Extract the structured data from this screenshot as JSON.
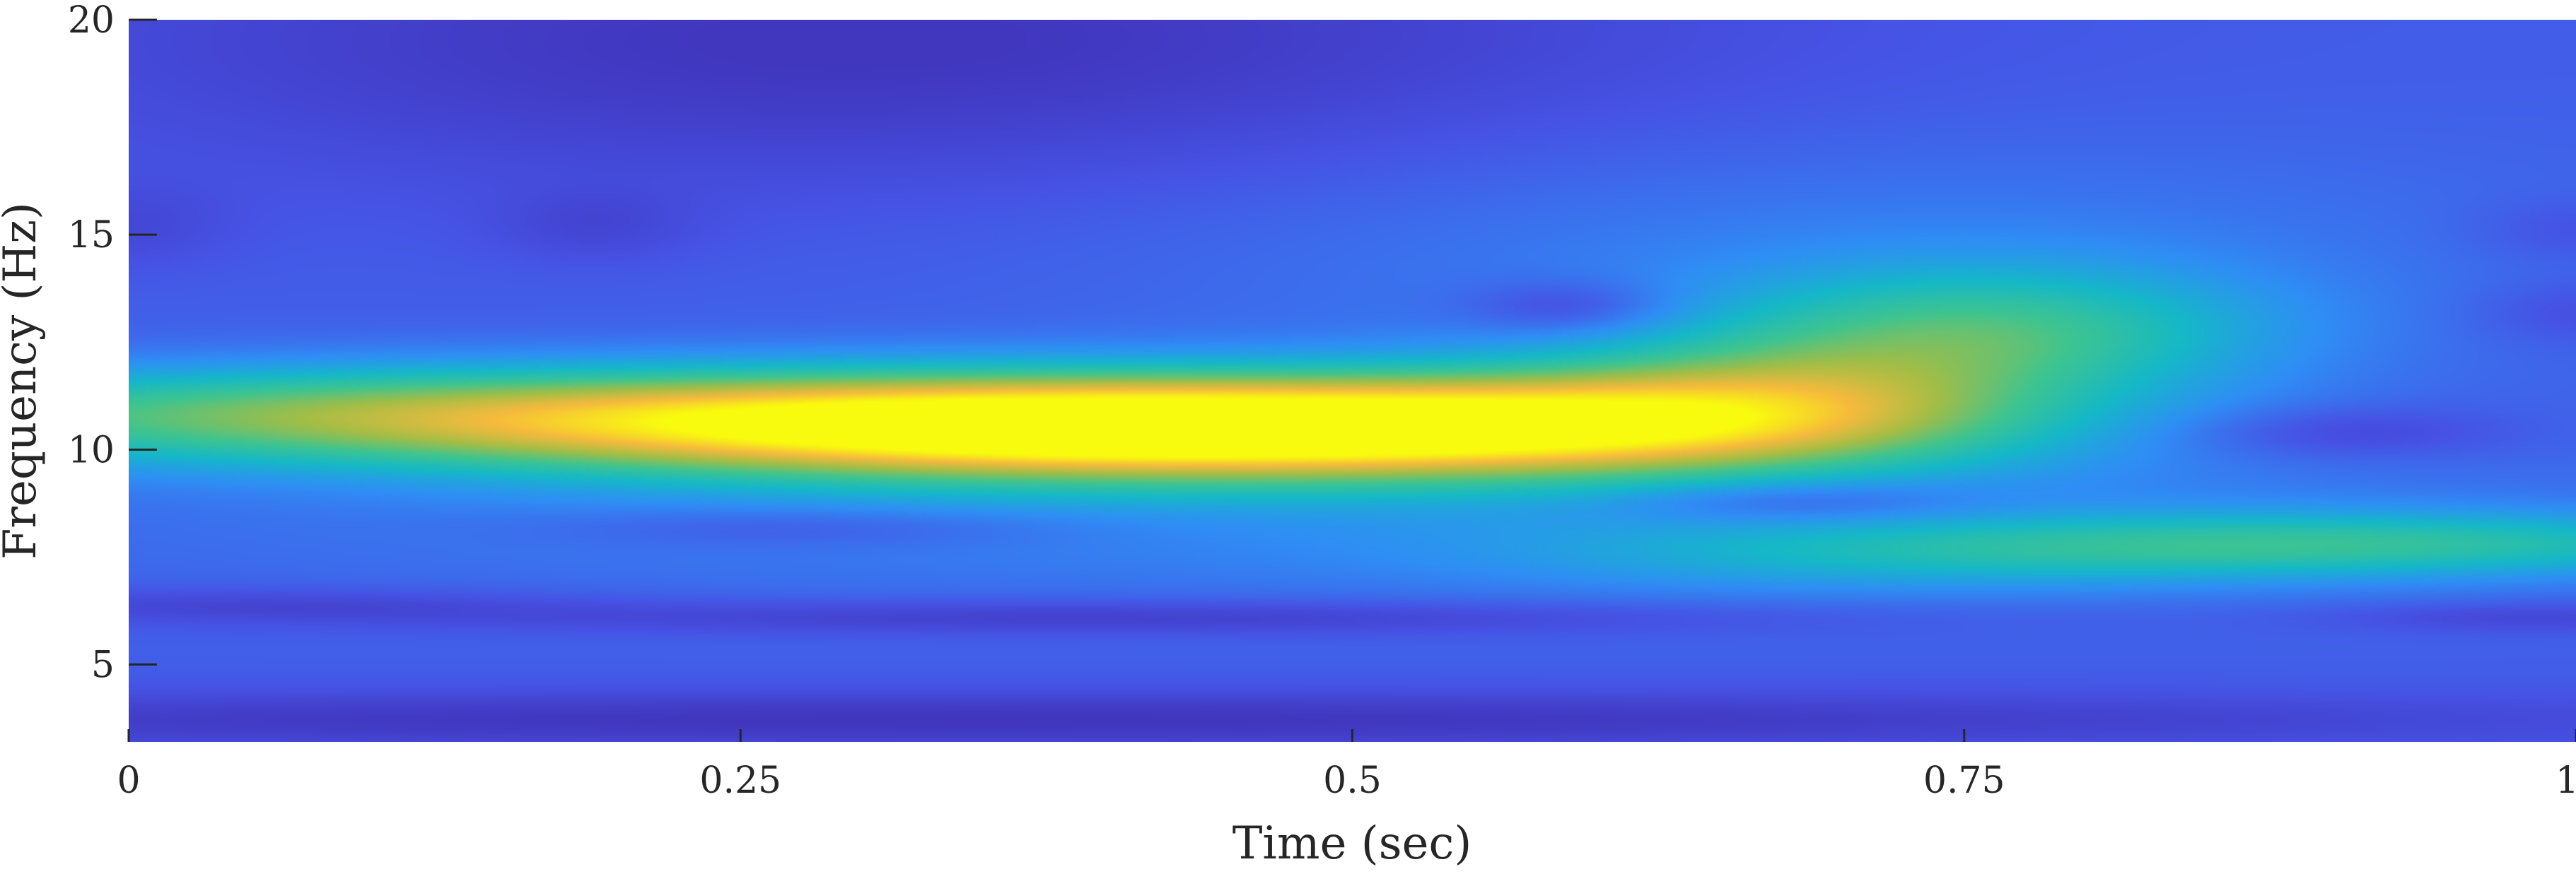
{
  "chart_data": {
    "type": "heatmap",
    "title": "",
    "xlabel": "Time (sec)",
    "ylabel": "Frequency (Hz)",
    "xlim": [
      0,
      1
    ],
    "ylim": [
      3.2,
      20
    ],
    "x_ticks": [
      {
        "value": 0,
        "label": "0"
      },
      {
        "value": 0.25,
        "label": "0.25"
      },
      {
        "value": 0.5,
        "label": "0.5"
      },
      {
        "value": 0.75,
        "label": "0.75"
      },
      {
        "value": 1,
        "label": "1"
      }
    ],
    "y_ticks": [
      {
        "value": 5,
        "label": "5"
      },
      {
        "value": 10,
        "label": "10"
      },
      {
        "value": 15,
        "label": "15"
      },
      {
        "value": 20,
        "label": "20"
      }
    ],
    "colormap": "parula",
    "colormap_stops": [
      "#3e26a8",
      "#4653e5",
      "#2f8ef5",
      "#15b8c8",
      "#3ec490",
      "#a3bd46",
      "#f6ba3d",
      "#f9fb0e"
    ],
    "background_level": 0.17,
    "components": [
      {
        "name": "alpha-band-main",
        "t_center": 0.43,
        "f_center": 10.5,
        "t_width": 0.17,
        "f_width": 0.85,
        "amplitude": 0.92
      },
      {
        "name": "alpha-band-left",
        "t_center": 0.12,
        "f_center": 10.8,
        "t_width": 0.2,
        "f_width": 0.8,
        "amplitude": 0.45
      },
      {
        "name": "alpha-band-right",
        "t_center": 0.62,
        "f_center": 10.7,
        "t_width": 0.1,
        "f_width": 0.9,
        "amplitude": 0.28
      },
      {
        "name": "rising-branch",
        "t_center": 0.76,
        "f_center": 12.7,
        "t_width": 0.08,
        "f_width": 1.1,
        "amplitude": 0.34
      },
      {
        "name": "branch-link",
        "t_center": 0.68,
        "f_center": 11.5,
        "t_width": 0.07,
        "f_width": 1.0,
        "amplitude": 0.2
      },
      {
        "name": "lower-band-right",
        "t_center": 0.92,
        "f_center": 7.8,
        "t_width": 0.14,
        "f_width": 0.55,
        "amplitude": 0.3
      },
      {
        "name": "lower-band-mid",
        "t_center": 0.72,
        "f_center": 7.5,
        "t_width": 0.12,
        "f_width": 0.6,
        "amplitude": 0.14
      },
      {
        "name": "upper-haze",
        "t_center": 0.7,
        "f_center": 14.5,
        "t_width": 0.2,
        "f_width": 2.0,
        "amplitude": 0.08
      },
      {
        "name": "mid-haze",
        "t_center": 0.5,
        "f_center": 8.5,
        "t_width": 0.35,
        "f_width": 1.4,
        "amplitude": 0.1
      }
    ],
    "minima": [
      {
        "name": "top-dark",
        "t_center": 0.3,
        "f_center": 19.5,
        "t_width": 0.25,
        "f_width": 2.5,
        "depth": 0.12
      },
      {
        "name": "notch-15-left",
        "t_center": 0.0,
        "f_center": 15.2,
        "t_width": 0.03,
        "f_width": 0.7,
        "depth": 0.05
      },
      {
        "name": "notch-15-mid",
        "t_center": 0.19,
        "f_center": 15.2,
        "t_width": 0.03,
        "f_width": 0.6,
        "depth": 0.05
      },
      {
        "name": "notch-13",
        "t_center": 0.59,
        "f_center": 13.3,
        "t_width": 0.03,
        "f_width": 0.45,
        "depth": 0.12
      },
      {
        "name": "notch-8.8",
        "t_center": 0.68,
        "f_center": 8.8,
        "t_width": 0.05,
        "f_width": 0.35,
        "depth": 0.12
      },
      {
        "name": "notch-8.2",
        "t_center": 0.28,
        "f_center": 8.2,
        "t_width": 0.08,
        "f_width": 0.35,
        "depth": 0.08
      },
      {
        "name": "notch-10.3",
        "t_center": 0.9,
        "f_center": 10.4,
        "t_width": 0.05,
        "f_width": 0.45,
        "depth": 0.1
      },
      {
        "name": "notch-13-right",
        "t_center": 1.0,
        "f_center": 13.2,
        "t_width": 0.03,
        "f_width": 0.5,
        "depth": 0.06
      },
      {
        "name": "notch-15-right",
        "t_center": 1.0,
        "f_center": 15.1,
        "t_width": 0.03,
        "f_width": 0.5,
        "depth": 0.05
      },
      {
        "name": "band-6-dark",
        "t_center": 0.4,
        "f_center": 6.1,
        "t_width": 0.2,
        "f_width": 0.3,
        "depth": 0.1
      },
      {
        "name": "band-6-left",
        "t_center": 0.05,
        "f_center": 6.4,
        "t_width": 0.1,
        "f_width": 0.3,
        "depth": 0.07
      },
      {
        "name": "band-6-right",
        "t_center": 0.98,
        "f_center": 6.1,
        "t_width": 0.06,
        "f_width": 0.25,
        "depth": 0.07
      },
      {
        "name": "bottom-dark",
        "t_center": 0.35,
        "f_center": 3.7,
        "t_width": 0.5,
        "f_width": 0.5,
        "depth": 0.12
      }
    ]
  }
}
